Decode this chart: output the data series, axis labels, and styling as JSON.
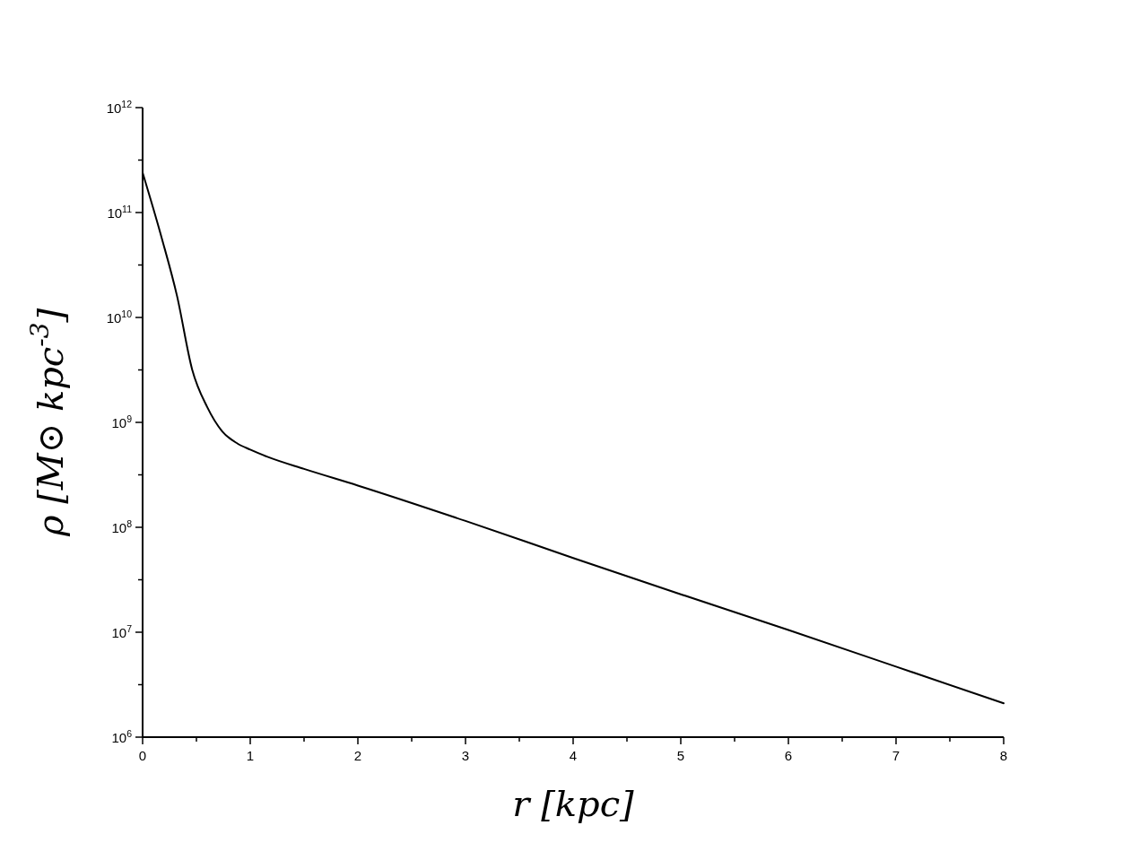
{
  "chart_data": {
    "type": "line",
    "xlabel": "r [kpc]",
    "ylabel": "ρ [M⊙ kpc$^{-3}$]",
    "log": "y",
    "grid": false,
    "marker": "none",
    "line_style": "solid",
    "xlim": [
      0,
      8
    ],
    "ylim": [
      1000000,
      1000000000000
    ],
    "xticks": [
      0,
      {
        "value": 0.5,
        "label": null
      },
      1,
      {
        "value": 1.5,
        "label": null
      },
      2,
      {
        "value": 2.5,
        "label": null
      },
      3,
      {
        "value": 3.5,
        "label": null
      },
      4,
      {
        "value": 4.5,
        "label": null
      },
      5,
      {
        "value": 5.5,
        "label": null
      },
      6,
      {
        "value": 6.5,
        "label": null
      },
      7,
      {
        "value": 7.5,
        "label": null
      },
      8
    ],
    "yticks": [
      {
        "value": 1000000,
        "label": "10$^{6}$"
      },
      {
        "value": 3162278,
        "label": null
      },
      {
        "value": 10000000,
        "label": "10$^{7}$"
      },
      {
        "value": 31622777,
        "label": null
      },
      {
        "value": 100000000,
        "label": "10$^{8}$"
      },
      {
        "value": 316227766,
        "label": null
      },
      {
        "value": 1000000000,
        "label": "10$^{9}$"
      },
      {
        "value": 3162277660,
        "label": null
      },
      {
        "value": 10000000000,
        "label": "10$^{10}$"
      },
      {
        "value": 31622776602,
        "label": null
      },
      {
        "value": 100000000000,
        "label": "10$^{11}$"
      },
      {
        "value": 316227766017,
        "label": null
      },
      {
        "value": 1000000000000,
        "label": "10$^{12}$"
      }
    ],
    "series": [
      {
        "color": "#000000",
        "x": [
          0,
          0.18,
          0.32,
          0.46,
          0.6,
          0.74,
          0.88,
          1,
          1.16,
          1.5,
          2,
          3,
          4,
          5,
          6,
          7,
          8
        ],
        "values": [
          240000000000,
          56000000000,
          16000000000,
          3200000000,
          1400000000,
          820000000,
          630000000,
          550000000,
          470000000,
          360000000,
          250000000,
          115000000,
          51000000,
          23000000,
          10500000,
          4700000,
          2100000
        ]
      }
    ]
  }
}
